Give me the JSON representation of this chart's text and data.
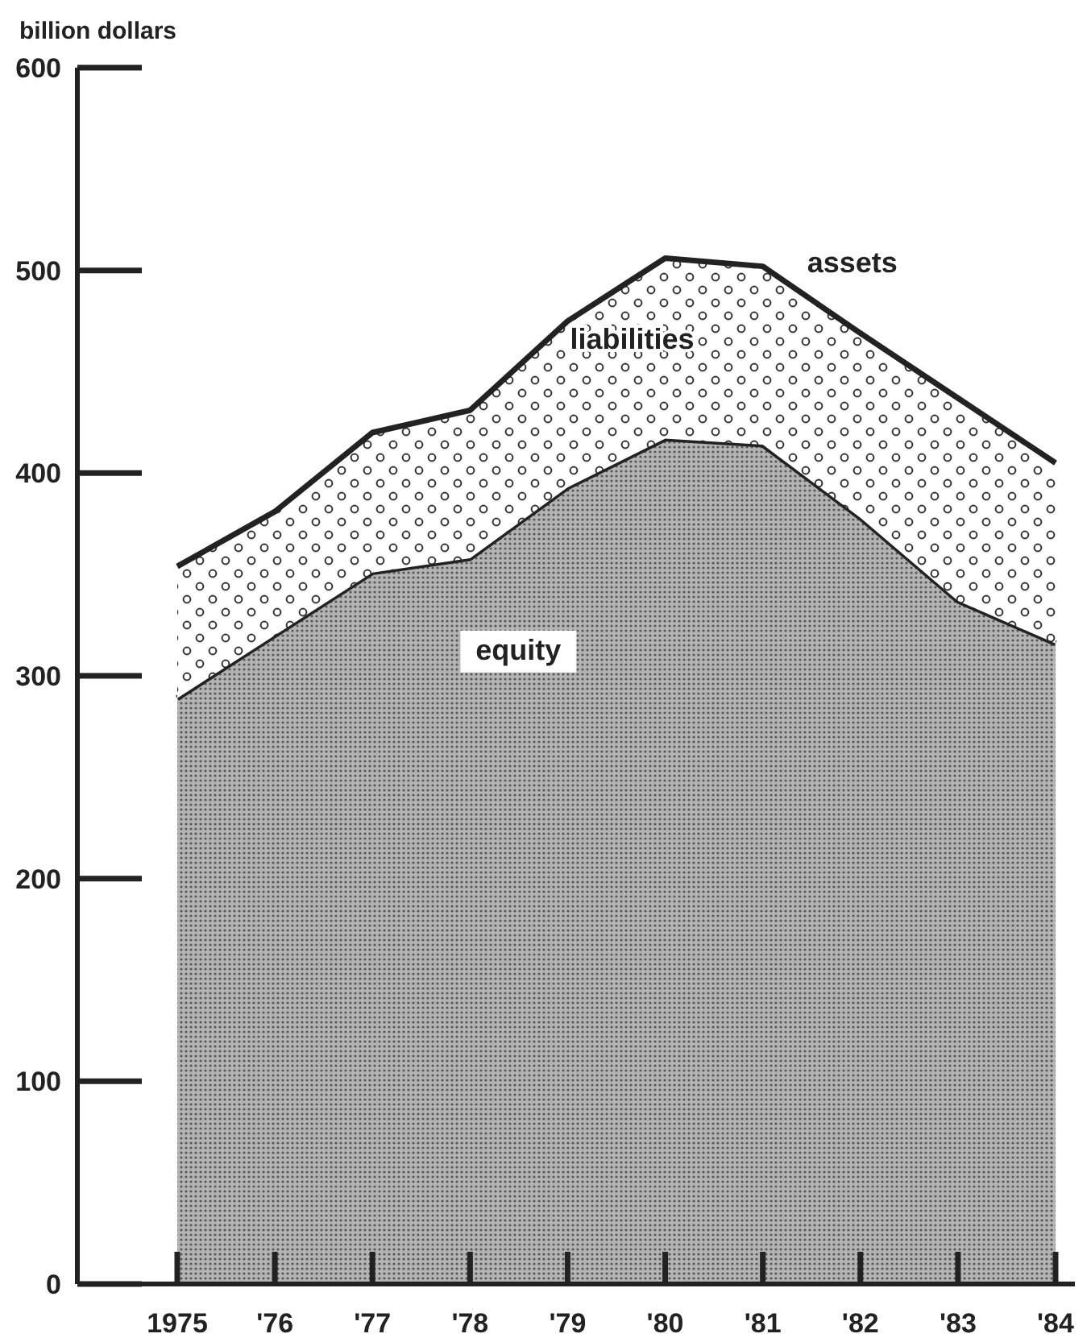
{
  "chart_data": {
    "type": "area",
    "stacked": true,
    "ylabel": "billion dollars",
    "categories": [
      "1975",
      "'76",
      "'77",
      "'78",
      "'79",
      "'80",
      "'81",
      "'82",
      "'83",
      "'84"
    ],
    "ylim": [
      0,
      600
    ],
    "yticks": [
      0,
      100,
      200,
      300,
      400,
      500,
      600
    ],
    "grid": false,
    "series": [
      {
        "name": "equity",
        "color": "#b4b4b4",
        "values": [
          289,
          320,
          351,
          358,
          393,
          417,
          414,
          378,
          337,
          316
        ]
      },
      {
        "name": "liabilities",
        "color": "#ffffff",
        "values": [
          65,
          61,
          69,
          73,
          82,
          89,
          88,
          91,
          100,
          89
        ]
      }
    ],
    "annotations": [
      {
        "text": "assets",
        "x": "'82",
        "y": 469
      }
    ]
  }
}
